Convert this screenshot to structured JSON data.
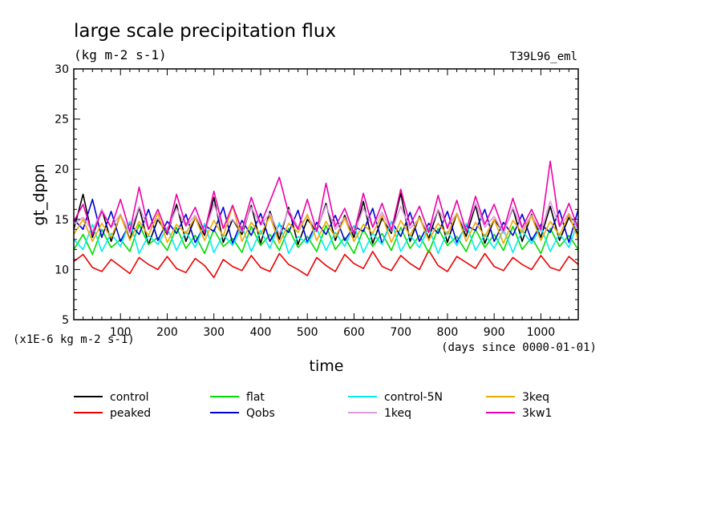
{
  "chart_data": {
    "type": "line",
    "title": "large scale precipitation flux",
    "subtitle": "(kg m-2 s-1)",
    "run_label": "T39L96_eml",
    "xlabel": "time",
    "ylabel": "gt_dppn",
    "y_scale_note": "(x1E-6 kg m-2 s-1)",
    "x_units_note": "(days since 0000-01-01)",
    "xlim": [
      0,
      1080
    ],
    "ylim": [
      5,
      30
    ],
    "x_ticks": [
      100,
      200,
      300,
      400,
      500,
      600,
      700,
      800,
      900,
      1000
    ],
    "y_ticks": [
      5,
      10,
      15,
      20,
      25,
      30
    ],
    "x": [
      0,
      20,
      40,
      60,
      80,
      100,
      120,
      140,
      160,
      180,
      200,
      220,
      240,
      260,
      280,
      300,
      320,
      340,
      360,
      380,
      400,
      420,
      440,
      460,
      480,
      500,
      520,
      540,
      560,
      580,
      600,
      620,
      640,
      660,
      680,
      700,
      720,
      740,
      760,
      780,
      800,
      820,
      840,
      860,
      880,
      900,
      920,
      940,
      960,
      980,
      1000,
      1020,
      1040,
      1060,
      1080
    ],
    "series": [
      {
        "name": "control",
        "color": "#000000",
        "values": [
          14.0,
          17.5,
          13.2,
          16.0,
          12.8,
          15.5,
          13.0,
          16.2,
          12.5,
          15.0,
          13.5,
          16.5,
          12.8,
          15.2,
          13.4,
          17.2,
          12.7,
          15.0,
          13.5,
          16.4,
          12.6,
          15.8,
          13.0,
          16.2,
          12.5,
          15.0,
          13.8,
          16.6,
          12.9,
          15.4,
          13.2,
          16.8,
          12.6,
          15.1,
          13.6,
          17.6,
          12.8,
          15.3,
          13.1,
          16.0,
          12.7,
          15.6,
          13.3,
          16.4,
          12.6,
          15.0,
          13.7,
          16.1,
          12.8,
          15.5,
          13.2,
          16.3,
          12.9,
          15.2,
          13.5
        ]
      },
      {
        "name": "peaked",
        "color": "#ee0000",
        "values": [
          10.8,
          11.5,
          10.2,
          9.8,
          11.0,
          10.3,
          9.6,
          11.2,
          10.5,
          10.0,
          11.3,
          10.1,
          9.7,
          11.1,
          10.4,
          9.2,
          11.0,
          10.3,
          9.9,
          11.4,
          10.2,
          9.8,
          11.6,
          10.5,
          10.0,
          9.4,
          11.2,
          10.4,
          9.8,
          11.5,
          10.6,
          10.1,
          11.8,
          10.3,
          9.9,
          11.4,
          10.6,
          10.0,
          11.9,
          10.4,
          9.8,
          11.3,
          10.7,
          10.1,
          11.6,
          10.3,
          9.9,
          11.2,
          10.5,
          10.0,
          11.4,
          10.2,
          9.9,
          11.3,
          10.5
        ]
      },
      {
        "name": "flat",
        "color": "#00dd00",
        "values": [
          12.0,
          13.5,
          11.5,
          14.0,
          12.2,
          13.0,
          11.8,
          14.5,
          12.5,
          13.2,
          11.9,
          14.2,
          12.1,
          13.4,
          11.6,
          14.0,
          12.3,
          13.1,
          11.7,
          14.3,
          12.4,
          13.5,
          11.9,
          14.1,
          12.2,
          13.3,
          11.8,
          14.4,
          12.0,
          13.2,
          11.6,
          14.0,
          12.3,
          13.6,
          11.9,
          14.2,
          12.1,
          13.4,
          11.7,
          14.1,
          12.4,
          13.3,
          11.8,
          14.0,
          12.2,
          13.5,
          11.9,
          14.3,
          12.0,
          13.2,
          11.6,
          14.1,
          12.3,
          13.4,
          12.0
        ]
      },
      {
        "name": "Qobs",
        "color": "#0000dd",
        "values": [
          15.0,
          14.0,
          17.0,
          13.2,
          15.8,
          12.8,
          14.6,
          13.5,
          16.0,
          12.9,
          14.8,
          13.6,
          15.5,
          12.7,
          14.4,
          13.8,
          16.2,
          12.6,
          14.9,
          13.4,
          15.6,
          12.8,
          14.5,
          13.7,
          15.9,
          12.7,
          14.7,
          13.5,
          15.4,
          12.9,
          14.3,
          13.8,
          16.1,
          12.6,
          14.8,
          13.3,
          15.7,
          12.8,
          14.6,
          13.6,
          15.8,
          12.7,
          14.4,
          13.9,
          16.0,
          12.8,
          14.7,
          13.4,
          15.5,
          12.9,
          14.5,
          13.7,
          15.9,
          12.7,
          16.0
        ]
      },
      {
        "name": "control-5N",
        "color": "#00eeee",
        "values": [
          13.0,
          12.0,
          14.5,
          11.8,
          13.6,
          12.3,
          14.8,
          11.6,
          13.4,
          12.5,
          14.2,
          11.9,
          13.8,
          12.2,
          14.6,
          11.7,
          13.5,
          12.4,
          14.3,
          11.8,
          13.9,
          12.1,
          14.7,
          11.6,
          13.3,
          12.6,
          14.1,
          11.9,
          13.7,
          12.3,
          14.4,
          11.7,
          13.6,
          12.5,
          14.8,
          11.8,
          13.4,
          12.2,
          14.2,
          11.6,
          13.8,
          12.4,
          14.6,
          11.9,
          13.5,
          12.1,
          14.0,
          11.7,
          13.9,
          12.6,
          14.3,
          11.8,
          13.6,
          12.2,
          14.9
        ]
      },
      {
        "name": "1keq",
        "color": "#dd99dd",
        "values": [
          14.5,
          15.2,
          13.8,
          16.0,
          14.2,
          15.5,
          13.6,
          16.3,
          14.0,
          15.1,
          13.9,
          16.1,
          14.3,
          15.4,
          13.7,
          16.5,
          14.1,
          15.0,
          13.8,
          16.2,
          14.4,
          15.6,
          13.5,
          16.0,
          14.2,
          15.3,
          13.9,
          16.4,
          14.0,
          15.2,
          13.6,
          16.1,
          14.3,
          15.7,
          13.8,
          16.3,
          14.1,
          15.1,
          13.7,
          16.0,
          14.4,
          15.5,
          13.9,
          16.6,
          14.2,
          15.3,
          13.6,
          16.2,
          14.0,
          15.4,
          13.8,
          16.8,
          14.3,
          15.6,
          14.0
        ]
      },
      {
        "name": "3keq",
        "color": "#eeaa00",
        "values": [
          13.5,
          15.0,
          12.8,
          14.6,
          13.2,
          15.4,
          12.9,
          14.8,
          13.4,
          15.6,
          12.7,
          14.5,
          13.6,
          15.2,
          12.9,
          14.9,
          13.3,
          16.4,
          12.8,
          14.7,
          13.5,
          15.3,
          12.6,
          14.6,
          13.7,
          15.5,
          12.9,
          14.8,
          13.2,
          15.1,
          12.8,
          14.5,
          13.6,
          15.4,
          12.7,
          14.9,
          13.4,
          15.2,
          12.9,
          14.6,
          13.5,
          15.6,
          12.8,
          14.7,
          13.3,
          15.0,
          12.6,
          14.9,
          13.7,
          15.3,
          12.9,
          14.8,
          13.4,
          15.5,
          13.0
        ]
      },
      {
        "name": "3kw1",
        "color": "#ee00aa",
        "values": [
          14.8,
          16.5,
          13.5,
          15.8,
          14.2,
          17.0,
          13.8,
          18.2,
          14.0,
          16.0,
          13.6,
          17.5,
          14.4,
          16.2,
          13.7,
          17.8,
          14.1,
          16.4,
          13.9,
          17.2,
          14.5,
          16.8,
          19.2,
          15.6,
          14.0,
          17.0,
          13.8,
          18.6,
          14.3,
          16.1,
          13.6,
          17.6,
          14.2,
          16.6,
          13.9,
          18.0,
          14.4,
          16.3,
          13.7,
          17.4,
          14.1,
          16.9,
          13.8,
          17.3,
          14.5,
          16.5,
          13.9,
          17.1,
          14.2,
          16.0,
          14.0,
          20.8,
          14.3,
          16.6,
          14.1
        ]
      }
    ]
  }
}
